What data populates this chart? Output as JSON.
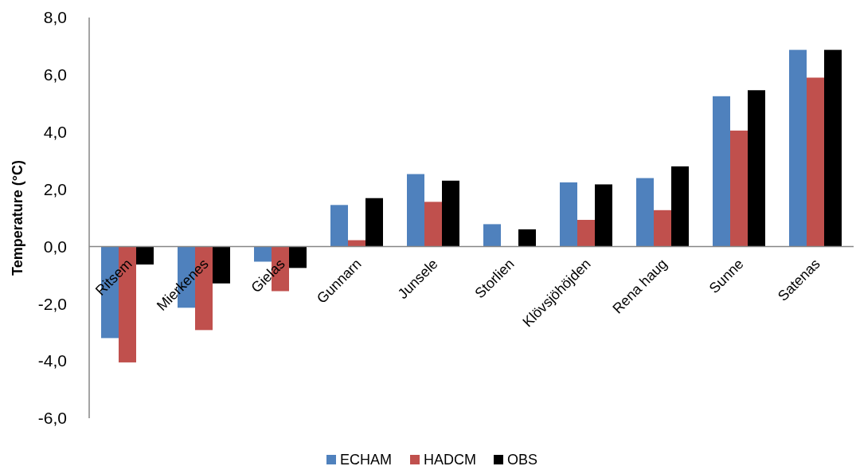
{
  "chart_data": {
    "type": "bar",
    "ylabel": "Temperature (°C)",
    "categories": [
      "Ritsem",
      "Mierkenes",
      "Gielas",
      "Gunnarn",
      "Junsele",
      "Storlien",
      "Klövsjöhöjden",
      "Rena haug",
      "Sunne",
      "Satenas"
    ],
    "series": [
      {
        "name": "ECHAM",
        "color": "#4f81bd",
        "values": [
          -3.2,
          -2.14,
          -0.53,
          1.45,
          2.53,
          0.78,
          2.24,
          2.39,
          5.25,
          6.87
        ]
      },
      {
        "name": "HADCM",
        "color": "#c0504d",
        "values": [
          -4.05,
          -2.92,
          -1.56,
          0.22,
          1.56,
          0,
          0.93,
          1.27,
          4.05,
          5.9
        ]
      },
      {
        "name": "OBS",
        "color": "#000000",
        "values": [
          -0.63,
          -1.29,
          -0.75,
          1.69,
          2.3,
          0.6,
          2.17,
          2.8,
          5.46,
          6.87
        ]
      }
    ],
    "ylim": [
      -6,
      8
    ],
    "yticks": [
      {
        "value": -6,
        "label": "-6,0"
      },
      {
        "value": -4,
        "label": "-4,0"
      },
      {
        "value": -2,
        "label": "-2,0"
      },
      {
        "value": 0,
        "label": "0,0"
      },
      {
        "value": 2,
        "label": "2,0"
      },
      {
        "value": 4,
        "label": "4,0"
      },
      {
        "value": 6,
        "label": "6,0"
      },
      {
        "value": 8,
        "label": "8,0"
      }
    ],
    "legend": "bottom"
  }
}
